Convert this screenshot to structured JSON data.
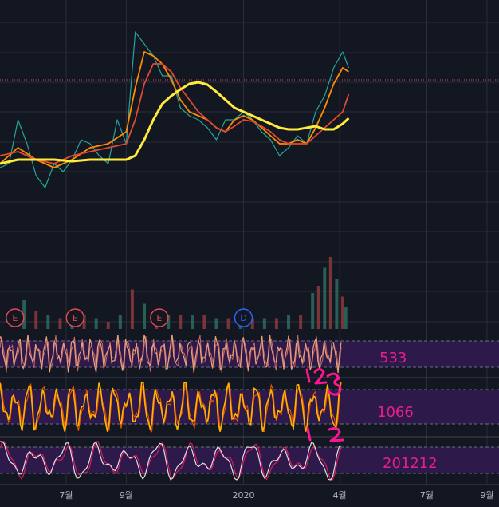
{
  "chart_data": {
    "type": "line",
    "title": "",
    "x_tick_labels": [
      "7월",
      "9월",
      "2020",
      "4월",
      "7월",
      "9월"
    ],
    "x_tick_months": [
      6.6,
      8.6,
      12.5,
      15.7,
      18.6,
      20.6
    ],
    "x_range_months": [
      4.4,
      21.0
    ],
    "price_panel": {
      "grid": true,
      "series": [
        {
          "name": "",
          "role": "price",
          "color": "#26a69a",
          "x": [
            4.4,
            4.7,
            5.0,
            5.3,
            5.6,
            5.9,
            6.2,
            6.5,
            6.8,
            7.1,
            7.4,
            7.7,
            8.0,
            8.3,
            8.6,
            8.9,
            9.2,
            9.5,
            9.8,
            10.1,
            10.4,
            10.7,
            11.0,
            11.3,
            11.6,
            11.9,
            12.2,
            12.5,
            12.8,
            13.1,
            13.4,
            13.7,
            14.0,
            14.3,
            14.6,
            14.9,
            15.2,
            15.5,
            15.8,
            16.0
          ],
          "y": [
            210,
            205,
            150,
            180,
            220,
            235,
            205,
            215,
            200,
            175,
            180,
            195,
            205,
            150,
            180,
            40,
            55,
            70,
            95,
            95,
            135,
            145,
            150,
            160,
            175,
            150,
            150,
            140,
            150,
            165,
            175,
            195,
            185,
            170,
            180,
            140,
            120,
            85,
            65,
            85
          ]
        },
        {
          "name": "",
          "role": "ma-fast",
          "color": "#ff8c00",
          "x": [
            4.4,
            5.0,
            5.6,
            6.2,
            6.8,
            7.4,
            8.0,
            8.6,
            8.9,
            9.2,
            9.5,
            9.8,
            10.1,
            10.4,
            10.7,
            11.0,
            11.3,
            11.6,
            11.9,
            12.2,
            12.5,
            12.8,
            13.1,
            13.4,
            13.7,
            14.0,
            14.3,
            14.6,
            14.9,
            15.2,
            15.5,
            15.8,
            16.0
          ],
          "y": [
            205,
            185,
            200,
            210,
            200,
            185,
            180,
            165,
            110,
            65,
            70,
            80,
            100,
            125,
            140,
            145,
            150,
            160,
            165,
            150,
            145,
            150,
            160,
            170,
            180,
            180,
            175,
            180,
            160,
            135,
            105,
            85,
            90
          ]
        },
        {
          "name": "",
          "role": "ma-mid",
          "color": "#e04a2f",
          "x": [
            4.4,
            5.0,
            5.6,
            6.2,
            6.8,
            7.4,
            8.0,
            8.6,
            8.9,
            9.2,
            9.5,
            9.8,
            10.1,
            10.4,
            10.7,
            11.0,
            11.3,
            11.6,
            11.9,
            12.2,
            12.5,
            12.8,
            13.1,
            13.4,
            13.7,
            14.0,
            14.3,
            14.6,
            14.9,
            15.2,
            15.5,
            15.8,
            16.0
          ],
          "y": [
            195,
            190,
            200,
            205,
            195,
            190,
            185,
            180,
            150,
            105,
            80,
            80,
            90,
            110,
            125,
            140,
            150,
            160,
            165,
            158,
            150,
            152,
            158,
            165,
            175,
            180,
            180,
            180,
            170,
            160,
            150,
            140,
            118
          ]
        },
        {
          "name": "",
          "role": "ma-slow",
          "color": "#ffeb3b",
          "x": [
            4.4,
            5.0,
            5.6,
            6.2,
            6.8,
            7.4,
            8.0,
            8.6,
            8.9,
            9.2,
            9.5,
            9.8,
            10.1,
            10.4,
            10.7,
            11.0,
            11.3,
            11.6,
            11.9,
            12.2,
            12.5,
            12.8,
            13.1,
            13.4,
            13.7,
            14.0,
            14.3,
            14.6,
            14.9,
            15.2,
            15.5,
            15.8,
            16.0
          ],
          "y": [
            205,
            200,
            200,
            200,
            202,
            200,
            200,
            200,
            195,
            175,
            150,
            130,
            120,
            112,
            105,
            103,
            106,
            115,
            125,
            135,
            140,
            145,
            150,
            155,
            160,
            162,
            162,
            160,
            158,
            162,
            162,
            155,
            148
          ]
        }
      ],
      "reference_line_y": 100
    },
    "volume_panel": {
      "type": "bar",
      "x": [
        5.2,
        5.6,
        6.0,
        6.4,
        6.8,
        7.2,
        7.6,
        8.0,
        8.4,
        8.8,
        9.2,
        9.6,
        10.0,
        10.4,
        10.8,
        11.2,
        11.6,
        12.0,
        12.4,
        12.8,
        13.2,
        13.6,
        14.0,
        14.4,
        14.8,
        15.0,
        15.2,
        15.4,
        15.6,
        15.8,
        15.9
      ],
      "values": [
        0.4,
        0.25,
        0.2,
        0.15,
        0.25,
        0.2,
        0.15,
        0.1,
        0.2,
        0.55,
        0.35,
        0.25,
        0.2,
        0.2,
        0.2,
        0.2,
        0.15,
        0.15,
        0.2,
        0.15,
        0.15,
        0.15,
        0.2,
        0.2,
        0.5,
        0.6,
        0.85,
        1.0,
        0.7,
        0.45,
        0.3
      ],
      "event_markers": [
        {
          "x": 4.9,
          "label": "E",
          "type": "earnings"
        },
        {
          "x": 6.9,
          "label": "E",
          "type": "earnings"
        },
        {
          "x": 9.7,
          "label": "E",
          "type": "earnings"
        },
        {
          "x": 12.5,
          "label": "D",
          "type": "dividend"
        }
      ]
    },
    "oscillators": [
      {
        "label": "533",
        "band": [
          20,
          80
        ],
        "color": "#e8a07a",
        "type": "fast stochastic"
      },
      {
        "label": "1066",
        "band": [
          20,
          80
        ],
        "color": "#ffb300",
        "type": "stochastic"
      },
      {
        "label": "201212",
        "band": [
          20,
          80
        ],
        "color": "#e0e0e0",
        "signal_color": "#d81b60",
        "type": "slow stochastic"
      }
    ]
  }
}
